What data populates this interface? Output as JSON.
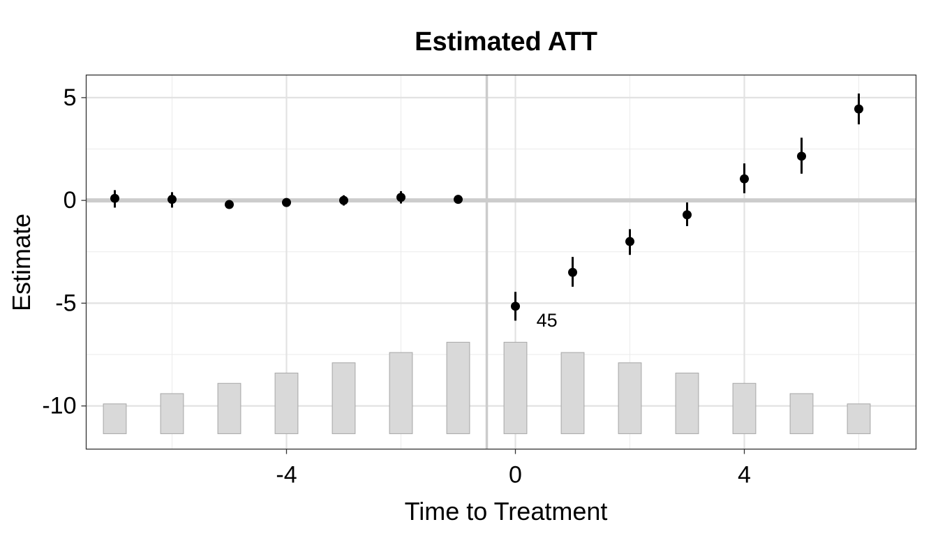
{
  "chart_data": {
    "type": "scatter",
    "title": "Estimated ATT",
    "xlabel": "Time to Treatment",
    "ylabel": "Estimate",
    "xlim": [
      -7.5,
      7.0
    ],
    "ylim": [
      -12.1,
      6.1
    ],
    "x_ticks": [
      -4,
      0,
      4
    ],
    "x_tick_labels": [
      "-4",
      "0",
      "4"
    ],
    "y_ticks": [
      5,
      0,
      -5,
      -10
    ],
    "y_tick_labels": [
      "5",
      "0",
      "-5",
      "-10"
    ],
    "grid": true,
    "reference_lines": {
      "y": 0,
      "x": -0.5
    },
    "series": [
      {
        "x": [
          -7,
          -6,
          -5,
          -4,
          -3,
          -2,
          -1,
          0,
          1,
          2,
          3,
          4,
          5,
          6
        ],
        "values": [
          0.1,
          0.05,
          -0.2,
          -0.1,
          0.0,
          0.15,
          0.05,
          -5.15,
          -3.5,
          -2.0,
          -0.7,
          1.05,
          2.15,
          4.45
        ],
        "ci_low": [
          -0.35,
          -0.35,
          -0.35,
          -0.2,
          -0.25,
          -0.15,
          0.05,
          -5.85,
          -4.2,
          -2.65,
          -1.25,
          0.35,
          1.3,
          3.7
        ],
        "ci_high": [
          0.5,
          0.4,
          -0.1,
          0.0,
          0.25,
          0.45,
          0.05,
          -4.45,
          -2.75,
          -1.4,
          -0.1,
          1.8,
          3.05,
          5.2
        ]
      }
    ],
    "count_bars": {
      "x": [
        -7,
        -6,
        -5,
        -4,
        -3,
        -2,
        -1,
        0,
        1,
        2,
        3,
        4,
        5,
        6
      ],
      "top": [
        -9.9,
        -9.4,
        -8.9,
        -8.4,
        -7.9,
        -7.4,
        -6.9,
        -6.9,
        -7.4,
        -7.9,
        -8.4,
        -8.9,
        -9.4,
        -9.9
      ],
      "base": -11.35
    },
    "annotations": [
      {
        "text": "45",
        "x": 0.55,
        "y": -5.9
      }
    ]
  }
}
